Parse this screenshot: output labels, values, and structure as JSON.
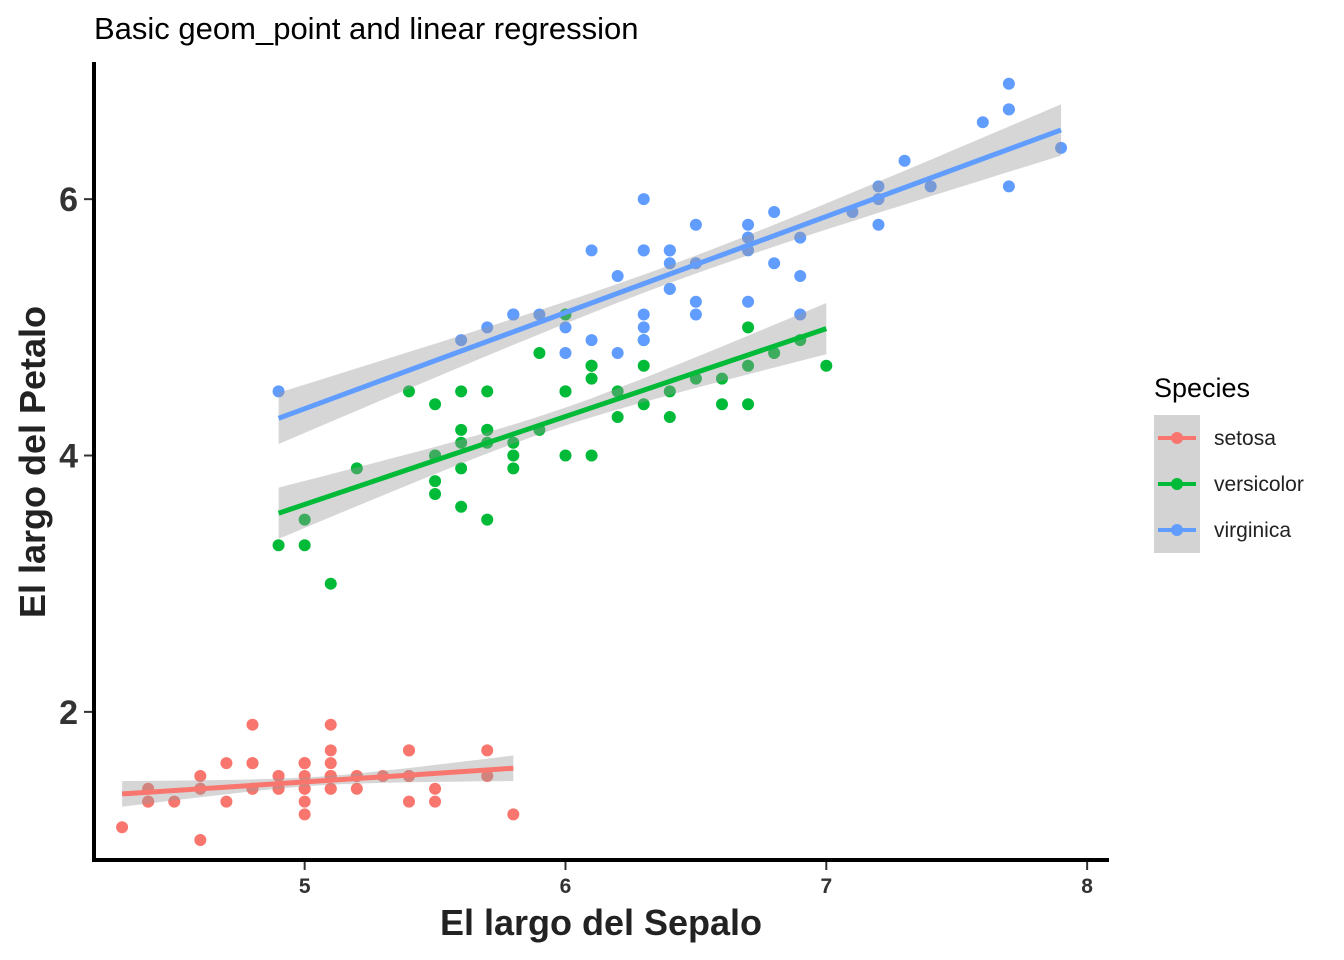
{
  "chart_data": {
    "type": "scatter",
    "title": "Basic geom_point and linear regression",
    "xlabel": "El largo del Sepalo",
    "ylabel": "El largo del Petalo",
    "xlim": [
      4.2,
      8.08
    ],
    "ylim": [
      0.86,
      7.07
    ],
    "x_ticks": [
      5,
      6,
      7,
      8
    ],
    "y_ticks": [
      2,
      4,
      6
    ],
    "grid": false,
    "legend_title": "Species",
    "legend_position": "right",
    "series": [
      {
        "name": "setosa",
        "color": "#F8766D",
        "points": [
          [
            5.1,
            1.4
          ],
          [
            4.9,
            1.4
          ],
          [
            4.7,
            1.3
          ],
          [
            4.6,
            1.5
          ],
          [
            5.0,
            1.4
          ],
          [
            5.4,
            1.7
          ],
          [
            4.6,
            1.4
          ],
          [
            5.0,
            1.5
          ],
          [
            4.4,
            1.4
          ],
          [
            4.9,
            1.5
          ],
          [
            5.4,
            1.5
          ],
          [
            4.8,
            1.6
          ],
          [
            4.8,
            1.4
          ],
          [
            4.3,
            1.1
          ],
          [
            5.8,
            1.2
          ],
          [
            5.7,
            1.5
          ],
          [
            5.4,
            1.3
          ],
          [
            5.1,
            1.4
          ],
          [
            5.7,
            1.7
          ],
          [
            5.1,
            1.5
          ],
          [
            5.4,
            1.7
          ],
          [
            5.1,
            1.5
          ],
          [
            4.6,
            1.0
          ],
          [
            5.1,
            1.7
          ],
          [
            4.8,
            1.9
          ],
          [
            5.0,
            1.6
          ],
          [
            5.0,
            1.6
          ],
          [
            5.2,
            1.5
          ],
          [
            5.2,
            1.4
          ],
          [
            4.7,
            1.6
          ],
          [
            4.8,
            1.6
          ],
          [
            5.4,
            1.5
          ],
          [
            5.2,
            1.5
          ],
          [
            5.5,
            1.4
          ],
          [
            4.9,
            1.5
          ],
          [
            5.0,
            1.2
          ],
          [
            5.5,
            1.3
          ],
          [
            4.9,
            1.4
          ],
          [
            4.4,
            1.3
          ],
          [
            5.1,
            1.5
          ],
          [
            5.0,
            1.3
          ],
          [
            4.5,
            1.3
          ],
          [
            4.4,
            1.3
          ],
          [
            5.0,
            1.6
          ],
          [
            5.1,
            1.9
          ],
          [
            4.8,
            1.4
          ],
          [
            5.1,
            1.6
          ],
          [
            4.6,
            1.4
          ],
          [
            5.3,
            1.5
          ],
          [
            5.0,
            1.4
          ]
        ],
        "fit": {
          "x": [
            4.3,
            5.8
          ],
          "y": [
            1.36,
            1.56
          ],
          "ci": 0.1
        }
      },
      {
        "name": "versicolor",
        "color": "#00BA38",
        "points": [
          [
            7.0,
            4.7
          ],
          [
            6.4,
            4.5
          ],
          [
            6.9,
            4.9
          ],
          [
            5.5,
            4.0
          ],
          [
            6.5,
            4.6
          ],
          [
            5.7,
            4.5
          ],
          [
            6.3,
            4.7
          ],
          [
            4.9,
            3.3
          ],
          [
            6.6,
            4.6
          ],
          [
            5.2,
            3.9
          ],
          [
            5.0,
            3.5
          ],
          [
            5.9,
            4.2
          ],
          [
            6.0,
            4.0
          ],
          [
            6.1,
            4.7
          ],
          [
            5.6,
            3.6
          ],
          [
            6.7,
            4.4
          ],
          [
            5.6,
            4.5
          ],
          [
            5.8,
            4.1
          ],
          [
            6.2,
            4.5
          ],
          [
            5.6,
            3.9
          ],
          [
            5.9,
            4.8
          ],
          [
            6.1,
            4.0
          ],
          [
            6.3,
            4.9
          ],
          [
            6.1,
            4.7
          ],
          [
            6.4,
            4.3
          ],
          [
            6.6,
            4.4
          ],
          [
            6.8,
            4.8
          ],
          [
            6.7,
            5.0
          ],
          [
            6.0,
            4.5
          ],
          [
            5.7,
            3.5
          ],
          [
            5.5,
            3.8
          ],
          [
            5.5,
            3.7
          ],
          [
            5.8,
            3.9
          ],
          [
            6.0,
            5.1
          ],
          [
            5.4,
            4.5
          ],
          [
            6.0,
            4.5
          ],
          [
            6.7,
            4.7
          ],
          [
            6.3,
            4.4
          ],
          [
            5.6,
            4.1
          ],
          [
            5.5,
            4.0
          ],
          [
            5.5,
            4.4
          ],
          [
            6.1,
            4.6
          ],
          [
            5.8,
            4.0
          ],
          [
            5.0,
            3.3
          ],
          [
            5.6,
            4.2
          ],
          [
            5.7,
            4.2
          ],
          [
            5.7,
            4.2
          ],
          [
            6.2,
            4.3
          ],
          [
            5.1,
            3.0
          ],
          [
            5.7,
            4.1
          ]
        ],
        "fit": {
          "x": [
            4.9,
            7.0
          ],
          "y": [
            3.55,
            4.99
          ],
          "ci": 0.2
        }
      },
      {
        "name": "virginica",
        "color": "#619CFF",
        "points": [
          [
            6.3,
            6.0
          ],
          [
            5.8,
            5.1
          ],
          [
            7.1,
            5.9
          ],
          [
            6.3,
            5.6
          ],
          [
            6.5,
            5.8
          ],
          [
            7.6,
            6.6
          ],
          [
            4.9,
            4.5
          ],
          [
            7.3,
            6.3
          ],
          [
            6.7,
            5.8
          ],
          [
            7.2,
            6.1
          ],
          [
            6.5,
            5.1
          ],
          [
            6.4,
            5.3
          ],
          [
            6.8,
            5.5
          ],
          [
            5.7,
            5.0
          ],
          [
            5.8,
            5.1
          ],
          [
            6.4,
            5.3
          ],
          [
            6.5,
            5.5
          ],
          [
            7.7,
            6.7
          ],
          [
            7.7,
            6.9
          ],
          [
            6.0,
            5.0
          ],
          [
            6.9,
            5.7
          ],
          [
            5.6,
            4.9
          ],
          [
            7.7,
            6.7
          ],
          [
            6.3,
            4.9
          ],
          [
            6.7,
            5.7
          ],
          [
            7.2,
            6.0
          ],
          [
            6.2,
            4.8
          ],
          [
            6.1,
            4.9
          ],
          [
            6.4,
            5.6
          ],
          [
            7.2,
            5.8
          ],
          [
            7.4,
            6.1
          ],
          [
            7.9,
            6.4
          ],
          [
            6.4,
            5.6
          ],
          [
            6.3,
            5.1
          ],
          [
            6.1,
            5.6
          ],
          [
            7.7,
            6.1
          ],
          [
            6.3,
            5.6
          ],
          [
            6.4,
            5.5
          ],
          [
            6.0,
            4.8
          ],
          [
            6.9,
            5.4
          ],
          [
            6.7,
            5.6
          ],
          [
            6.9,
            5.1
          ],
          [
            5.8,
            5.1
          ],
          [
            6.8,
            5.9
          ],
          [
            6.7,
            5.7
          ],
          [
            6.7,
            5.2
          ],
          [
            6.3,
            5.0
          ],
          [
            6.5,
            5.2
          ],
          [
            6.2,
            5.4
          ],
          [
            5.9,
            5.1
          ]
        ],
        "fit": {
          "x": [
            4.9,
            7.9
          ],
          "y": [
            4.29,
            6.54
          ],
          "ci": 0.2
        }
      }
    ]
  }
}
